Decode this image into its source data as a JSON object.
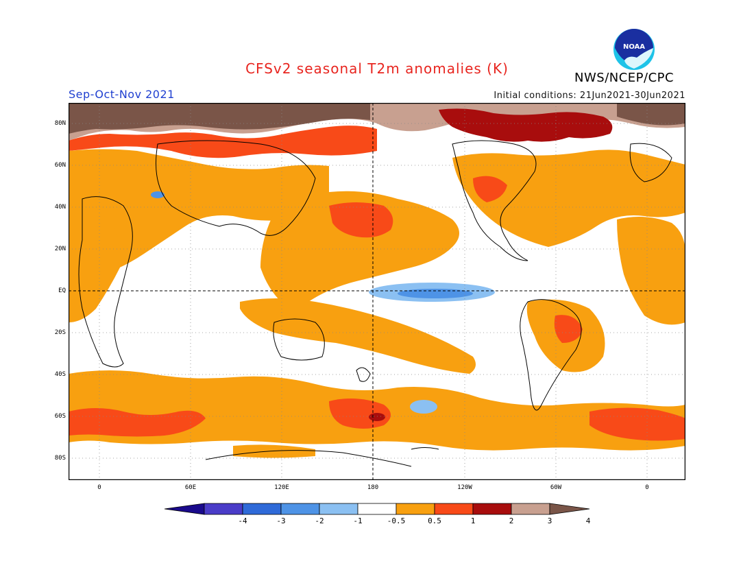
{
  "header": {
    "title": "CFSv2 seasonal T2m anomalies (K)",
    "org": "NWS/NCEP/CPC",
    "season": "Sep-Oct-Nov 2021",
    "initial_conditions": "Initial conditions: 21Jun2021-30Jun2021",
    "logo_text": "NOAA"
  },
  "map": {
    "lat_labels": [
      "80N",
      "60N",
      "40N",
      "20N",
      "EQ",
      "20S",
      "40S",
      "60S",
      "80S"
    ],
    "lon_labels": [
      "0",
      "60E",
      "120E",
      "180",
      "120W",
      "60W",
      "0"
    ]
  },
  "colorbar": {
    "labels": [
      "-4",
      "-3",
      "-2",
      "-1",
      "-0.5",
      "0.5",
      "1",
      "2",
      "3",
      "4"
    ],
    "colors": [
      "#1a0a8c",
      "#4a3cc8",
      "#2f6ad8",
      "#4e93e6",
      "#8bc0f2",
      "#ffffff",
      "#f8a010",
      "#f84a18",
      "#a80d0d",
      "#c8a090",
      "#7a5548"
    ]
  }
}
